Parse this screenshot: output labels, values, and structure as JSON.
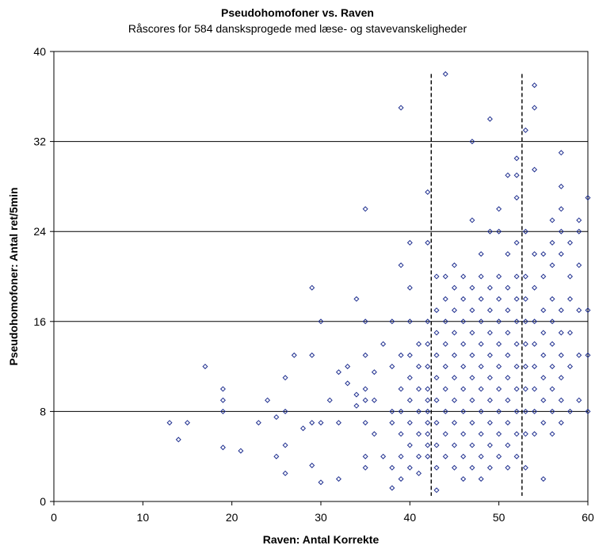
{
  "chart_data": {
    "type": "scatter",
    "title": "Pseudohomofoner vs. Raven",
    "subtitle": "Råscores for 584 dansksprogede med læse- og stavevanskeligheder",
    "xlabel": "Raven: Antal Korrekte",
    "ylabel": "Pseudohomofoner: Antal ret/5min",
    "xlim": [
      0,
      60
    ],
    "ylim": [
      0,
      40
    ],
    "xticks": [
      "0",
      "10",
      "20",
      "30",
      "40",
      "50",
      "60"
    ],
    "yticks": [
      "0",
      "8",
      "16",
      "24",
      "32",
      "40"
    ],
    "grid": "horizontal",
    "reference_lines_x": [
      42.4,
      52.6
    ],
    "marker_color": "#1f2f8f",
    "points": [
      [
        13,
        7
      ],
      [
        14,
        5.5
      ],
      [
        15,
        7
      ],
      [
        17,
        12
      ],
      [
        19,
        10
      ],
      [
        19,
        9
      ],
      [
        19,
        8
      ],
      [
        19,
        4.8
      ],
      [
        21,
        4.5
      ],
      [
        23,
        7
      ],
      [
        24,
        9
      ],
      [
        25,
        4
      ],
      [
        25,
        7.5
      ],
      [
        26,
        8
      ],
      [
        26,
        11
      ],
      [
        26,
        2.5
      ],
      [
        26,
        5
      ],
      [
        27,
        13
      ],
      [
        28,
        6.5
      ],
      [
        29,
        19
      ],
      [
        29,
        13
      ],
      [
        29,
        7
      ],
      [
        29,
        3.2
      ],
      [
        30,
        16
      ],
      [
        30,
        7
      ],
      [
        30,
        1.7
      ],
      [
        31,
        9
      ],
      [
        32,
        7
      ],
      [
        32,
        11.5
      ],
      [
        32,
        2
      ],
      [
        33,
        12
      ],
      [
        33,
        10.5
      ],
      [
        34,
        9.5
      ],
      [
        34,
        8.5
      ],
      [
        34,
        18
      ],
      [
        35,
        26
      ],
      [
        35,
        16
      ],
      [
        35,
        13
      ],
      [
        35,
        10
      ],
      [
        35,
        9
      ],
      [
        35,
        7
      ],
      [
        35,
        4
      ],
      [
        35,
        3
      ],
      [
        36,
        9
      ],
      [
        36,
        6
      ],
      [
        36,
        11.5
      ],
      [
        37,
        14
      ],
      [
        37,
        4
      ],
      [
        38,
        16
      ],
      [
        38,
        12
      ],
      [
        38,
        8
      ],
      [
        38,
        7
      ],
      [
        38,
        3
      ],
      [
        38,
        1.2
      ],
      [
        39,
        35
      ],
      [
        39,
        21
      ],
      [
        39,
        13
      ],
      [
        39,
        10
      ],
      [
        39,
        8
      ],
      [
        39,
        6
      ],
      [
        39,
        4
      ],
      [
        39,
        2
      ],
      [
        40,
        23
      ],
      [
        40,
        19
      ],
      [
        40,
        16
      ],
      [
        40,
        13
      ],
      [
        40,
        11
      ],
      [
        40,
        9
      ],
      [
        40,
        7
      ],
      [
        40,
        5
      ],
      [
        40,
        3
      ],
      [
        41,
        14
      ],
      [
        41,
        12
      ],
      [
        41,
        10
      ],
      [
        41,
        8
      ],
      [
        41,
        6
      ],
      [
        41,
        4
      ],
      [
        41,
        2.5
      ],
      [
        42,
        27.5
      ],
      [
        42,
        23
      ],
      [
        42,
        16
      ],
      [
        42,
        14
      ],
      [
        42,
        12
      ],
      [
        42,
        10
      ],
      [
        42,
        9
      ],
      [
        42,
        8
      ],
      [
        42,
        7
      ],
      [
        42,
        6
      ],
      [
        42,
        5
      ],
      [
        42,
        4
      ],
      [
        43,
        20
      ],
      [
        43,
        17
      ],
      [
        43,
        15
      ],
      [
        43,
        13
      ],
      [
        43,
        11
      ],
      [
        43,
        9
      ],
      [
        43,
        7
      ],
      [
        43,
        5
      ],
      [
        43,
        3
      ],
      [
        43,
        1
      ],
      [
        44,
        38
      ],
      [
        44,
        20
      ],
      [
        44,
        18
      ],
      [
        44,
        16
      ],
      [
        44,
        14
      ],
      [
        44,
        12
      ],
      [
        44,
        10
      ],
      [
        44,
        8
      ],
      [
        44,
        6
      ],
      [
        44,
        4
      ],
      [
        45,
        21
      ],
      [
        45,
        19
      ],
      [
        45,
        17
      ],
      [
        45,
        15
      ],
      [
        45,
        13
      ],
      [
        45,
        11
      ],
      [
        45,
        9
      ],
      [
        45,
        7
      ],
      [
        45,
        5
      ],
      [
        45,
        3
      ],
      [
        46,
        20
      ],
      [
        46,
        18
      ],
      [
        46,
        16
      ],
      [
        46,
        14
      ],
      [
        46,
        12
      ],
      [
        46,
        10
      ],
      [
        46,
        8
      ],
      [
        46,
        6
      ],
      [
        46,
        4
      ],
      [
        46,
        2
      ],
      [
        47,
        32
      ],
      [
        47,
        25
      ],
      [
        47,
        19
      ],
      [
        47,
        17
      ],
      [
        47,
        15
      ],
      [
        47,
        13
      ],
      [
        47,
        11
      ],
      [
        47,
        9
      ],
      [
        47,
        7
      ],
      [
        47,
        5
      ],
      [
        47,
        3
      ],
      [
        48,
        22
      ],
      [
        48,
        20
      ],
      [
        48,
        18
      ],
      [
        48,
        16
      ],
      [
        48,
        14
      ],
      [
        48,
        12
      ],
      [
        48,
        10
      ],
      [
        48,
        8
      ],
      [
        48,
        6
      ],
      [
        48,
        4
      ],
      [
        48,
        2
      ],
      [
        49,
        34
      ],
      [
        49,
        24
      ],
      [
        49,
        19
      ],
      [
        49,
        17
      ],
      [
        49,
        15
      ],
      [
        49,
        13
      ],
      [
        49,
        11
      ],
      [
        49,
        9
      ],
      [
        49,
        7
      ],
      [
        49,
        5
      ],
      [
        49,
        3
      ],
      [
        50,
        26
      ],
      [
        50,
        24
      ],
      [
        50,
        20
      ],
      [
        50,
        18
      ],
      [
        50,
        16
      ],
      [
        50,
        14
      ],
      [
        50,
        12
      ],
      [
        50,
        10
      ],
      [
        50,
        8
      ],
      [
        50,
        6
      ],
      [
        50,
        4
      ],
      [
        51,
        29
      ],
      [
        51,
        22
      ],
      [
        51,
        19
      ],
      [
        51,
        17
      ],
      [
        51,
        15
      ],
      [
        51,
        13
      ],
      [
        51,
        11
      ],
      [
        51,
        9
      ],
      [
        51,
        7
      ],
      [
        51,
        5
      ],
      [
        51,
        3
      ],
      [
        52,
        30.5
      ],
      [
        52,
        29
      ],
      [
        52,
        27
      ],
      [
        52,
        23
      ],
      [
        52,
        20
      ],
      [
        52,
        18
      ],
      [
        52,
        16
      ],
      [
        52,
        14
      ],
      [
        52,
        12
      ],
      [
        52,
        10
      ],
      [
        52,
        8
      ],
      [
        52,
        6
      ],
      [
        52,
        4
      ],
      [
        53,
        33
      ],
      [
        53,
        24
      ],
      [
        53,
        20
      ],
      [
        53,
        18
      ],
      [
        53,
        16
      ],
      [
        53,
        14
      ],
      [
        53,
        12
      ],
      [
        53,
        10
      ],
      [
        53,
        8
      ],
      [
        53,
        6
      ],
      [
        53,
        3
      ],
      [
        54,
        37
      ],
      [
        54,
        35
      ],
      [
        54,
        29.5
      ],
      [
        54,
        22
      ],
      [
        54,
        19
      ],
      [
        54,
        16
      ],
      [
        54,
        14
      ],
      [
        54,
        12
      ],
      [
        54,
        10
      ],
      [
        54,
        8
      ],
      [
        54,
        6
      ],
      [
        55,
        22
      ],
      [
        55,
        20
      ],
      [
        55,
        17
      ],
      [
        55,
        15
      ],
      [
        55,
        13
      ],
      [
        55,
        11
      ],
      [
        55,
        9
      ],
      [
        55,
        7
      ],
      [
        55,
        2
      ],
      [
        56,
        25
      ],
      [
        56,
        23
      ],
      [
        56,
        21
      ],
      [
        56,
        18
      ],
      [
        56,
        16
      ],
      [
        56,
        14
      ],
      [
        56,
        12
      ],
      [
        56,
        10
      ],
      [
        56,
        8
      ],
      [
        56,
        6
      ],
      [
        57,
        31
      ],
      [
        57,
        28
      ],
      [
        57,
        26
      ],
      [
        57,
        24
      ],
      [
        57,
        22
      ],
      [
        57,
        17
      ],
      [
        57,
        15
      ],
      [
        57,
        13
      ],
      [
        57,
        11
      ],
      [
        57,
        9
      ],
      [
        57,
        7
      ],
      [
        58,
        23
      ],
      [
        58,
        20
      ],
      [
        58,
        18
      ],
      [
        58,
        15
      ],
      [
        58,
        12
      ],
      [
        58,
        8
      ],
      [
        59,
        25
      ],
      [
        59,
        24
      ],
      [
        59,
        21
      ],
      [
        59,
        17
      ],
      [
        59,
        13
      ],
      [
        59,
        9
      ],
      [
        60,
        27
      ],
      [
        60,
        17
      ],
      [
        60,
        13
      ],
      [
        60,
        8
      ]
    ]
  }
}
